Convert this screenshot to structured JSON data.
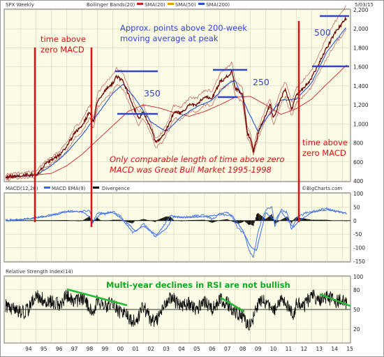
{
  "header": {
    "symbol": "SPX Weekly",
    "indicators": "Bollinger Bands(20)",
    "sma20": "SMA(20)",
    "sma50": "SMA(50)",
    "sma200": "SMA(200)",
    "date": "5/03/15"
  },
  "macd_header": {
    "macd": "MACD(12,26)",
    "ema": "MACD EMA(9)",
    "divergence": "Divergence"
  },
  "rsi_header": {
    "title": "Relative Strength Index(14)"
  },
  "watermark": "©BigCharts.com",
  "annotations": {
    "macd_left_1": "time above",
    "macd_left_2": "zero MACD",
    "peak_1": "Approx. points above 200-week",
    "peak_2": "moving average at peak",
    "pts_350": "350",
    "pts_250": "250",
    "pts_500": "500",
    "comp_1": "Only comparable length of time above zero",
    "comp_2": "MACD was Great Bull Market 1995-1998",
    "macd_right_1": "time above",
    "macd_right_2": "zero MACD",
    "rsi_note": "Multi-year declines in RSI are not bullish"
  },
  "colors": {
    "background": "#ffffff",
    "panel": "#fbfbe6",
    "price": "#6e0000",
    "sma20": "#cc2222",
    "sma50": "#e0a000",
    "sma200": "#2255cc",
    "macd": "#4477dd",
    "signal": "#3366ff",
    "annotation_red": "#dd1111",
    "annotation_blue": "#3344dd",
    "annotation_green": "#22bb33"
  },
  "chart_data": [
    {
      "type": "line",
      "title": "SPX Weekly",
      "ylim": [
        400,
        2200
      ],
      "y_ticks": [
        "2,200",
        "2,000",
        "1,800",
        "1,600",
        "1,400",
        "1,200",
        "1,000",
        "800",
        "600",
        "400"
      ],
      "x_ticks": [
        "94",
        "95",
        "96",
        "97",
        "98",
        "99",
        "00",
        "01",
        "02",
        "03",
        "04",
        "05",
        "06",
        "07",
        "08",
        "09",
        "10",
        "11",
        "12",
        "13",
        "14",
        "15"
      ],
      "series": [
        {
          "name": "SPX",
          "x": [
            1993.0,
            1994.0,
            1995.0,
            1995.5,
            1996.0,
            1996.5,
            1997.0,
            1997.5,
            1998.0,
            1998.5,
            1998.75,
            1999.0,
            1999.5,
            2000.0,
            2000.25,
            2000.7,
            2001.0,
            2001.3,
            2001.7,
            2002.0,
            2002.5,
            2002.8,
            2003.2,
            2003.7,
            2004.0,
            2004.5,
            2005.0,
            2005.5,
            2006.0,
            2006.5,
            2007.0,
            2007.5,
            2007.8,
            2008.0,
            2008.5,
            2008.8,
            2009.0,
            2009.2,
            2009.5,
            2010.0,
            2010.3,
            2010.5,
            2011.0,
            2011.3,
            2011.7,
            2012.0,
            2012.5,
            2013.0,
            2013.5,
            2014.0,
            2014.5,
            2015.0,
            2015.3
          ],
          "y": [
            440,
            460,
            470,
            560,
            620,
            670,
            760,
            900,
            980,
            1130,
            1000,
            1240,
            1350,
            1430,
            1500,
            1450,
            1320,
            1200,
            1050,
            1130,
            950,
            800,
            850,
            1000,
            1130,
            1110,
            1200,
            1200,
            1280,
            1270,
            1440,
            1500,
            1550,
            1380,
            1300,
            900,
            850,
            700,
            900,
            1100,
            1200,
            1050,
            1280,
            1360,
            1150,
            1300,
            1380,
            1480,
            1640,
            1800,
            1950,
            2060,
            2120
          ]
        },
        {
          "name": "SMA(200)",
          "x": [
            1993.0,
            1996.0,
            1997.0,
            1998.0,
            1999.0,
            2000.0,
            2001.0,
            2002.0,
            2003.0,
            2004.0,
            2005.0,
            2006.0,
            2007.0,
            2008.0,
            2009.0,
            2010.0,
            2011.0,
            2012.0,
            2013.0,
            2014.0,
            2015.3
          ],
          "y": [
            430,
            480,
            560,
            680,
            830,
            980,
            1130,
            1200,
            1170,
            1120,
            1080,
            1130,
            1200,
            1280,
            1290,
            1200,
            1100,
            1160,
            1260,
            1420,
            1620
          ]
        },
        {
          "name": "SMA(50)",
          "x": [
            1993.0,
            1995.0,
            1996.0,
            1997.0,
            1998.0,
            1999.0,
            2000.0,
            2000.7,
            2001.5,
            2002.5,
            2003.5,
            2004.5,
            2005.5,
            2006.5,
            2007.5,
            2008.0,
            2008.8,
            2009.5,
            2010.0,
            2011.0,
            2012.0,
            2013.0,
            2014.0,
            2015.3
          ],
          "y": [
            440,
            460,
            560,
            700,
            880,
            1100,
            1320,
            1420,
            1260,
            1020,
            920,
            1080,
            1180,
            1250,
            1420,
            1460,
            1150,
            920,
            1050,
            1250,
            1260,
            1430,
            1760,
            2020
          ]
        }
      ]
    },
    {
      "type": "line",
      "title": "MACD(12,26)",
      "ylim": [
        -150,
        100
      ],
      "y_ticks": [
        "100",
        "50",
        "0",
        "-50",
        "-100",
        "-150"
      ],
      "series": [
        {
          "name": "MACD(12,26)",
          "x": [
            1993.0,
            1994.0,
            1995.0,
            1996.0,
            1997.0,
            1997.8,
            1998.5,
            1998.7,
            1999.0,
            1999.5,
            2000.0,
            2000.5,
            2001.0,
            2001.3,
            2001.7,
            2002.0,
            2002.5,
            2002.8,
            2003.3,
            2003.8,
            2004.5,
            2005.0,
            2006.0,
            2006.5,
            2007.0,
            2007.5,
            2007.8,
            2008.2,
            2008.6,
            2008.9,
            2009.2,
            2009.5,
            2010.0,
            2010.4,
            2010.6,
            2011.0,
            2011.4,
            2011.7,
            2012.0,
            2012.5,
            2013.0,
            2013.5,
            2014.0,
            2014.5,
            2015.0,
            2015.3
          ],
          "y": [
            2,
            3,
            12,
            20,
            35,
            30,
            40,
            -10,
            30,
            25,
            35,
            15,
            -20,
            -45,
            -30,
            -10,
            -40,
            -60,
            -20,
            20,
            10,
            15,
            20,
            5,
            25,
            30,
            15,
            -30,
            -50,
            -110,
            -135,
            -40,
            40,
            50,
            -20,
            40,
            30,
            -35,
            10,
            25,
            35,
            40,
            45,
            35,
            30,
            25
          ]
        },
        {
          "name": "MACD EMA(9)",
          "x": [
            1993.0,
            1994.0,
            1995.0,
            1996.0,
            1997.0,
            1998.0,
            1998.8,
            1999.2,
            2000.0,
            2001.0,
            2001.5,
            2002.0,
            2002.9,
            2003.5,
            2004.0,
            2005.0,
            2006.0,
            2007.0,
            2007.8,
            2008.5,
            2009.0,
            2009.4,
            2010.0,
            2010.6,
            2011.0,
            2011.8,
            2012.2,
            2013.0,
            2014.0,
            2015.3
          ],
          "y": [
            2,
            3,
            10,
            18,
            32,
            34,
            0,
            25,
            30,
            -10,
            -40,
            -20,
            -55,
            -30,
            15,
            12,
            15,
            22,
            20,
            -35,
            -95,
            -110,
            30,
            0,
            35,
            -25,
            0,
            30,
            40,
            28
          ]
        }
      ]
    },
    {
      "type": "line",
      "title": "Relative Strength Index(14)",
      "ylim": [
        0,
        100
      ],
      "y_ticks": [
        "100",
        "80",
        "50",
        "20"
      ],
      "series": [
        {
          "name": "RSI(14)",
          "x": [
            1993.0,
            1994.0,
            1994.5,
            1995.0,
            1995.5,
            1996.0,
            1996.5,
            1997.0,
            1997.5,
            1998.0,
            1998.5,
            1998.8,
            1999.0,
            1999.5,
            2000.0,
            2000.5,
            2001.0,
            2001.3,
            2001.7,
            2002.0,
            2002.5,
            2002.8,
            2003.3,
            2003.8,
            2004.5,
            2005.0,
            2005.5,
            2006.0,
            2006.5,
            2007.0,
            2007.5,
            2008.0,
            2008.5,
            2008.8,
            2009.0,
            2009.3,
            2009.6,
            2010.0,
            2010.5,
            2011.0,
            2011.5,
            2011.8,
            2012.0,
            2012.5,
            2013.0,
            2013.5,
            2014.0,
            2014.5,
            2015.0,
            2015.3
          ],
          "y": [
            55,
            45,
            50,
            72,
            65,
            62,
            58,
            70,
            62,
            67,
            55,
            40,
            65,
            55,
            60,
            45,
            40,
            30,
            40,
            55,
            35,
            30,
            55,
            68,
            55,
            60,
            50,
            62,
            50,
            65,
            60,
            45,
            40,
            28,
            25,
            45,
            65,
            62,
            45,
            65,
            55,
            40,
            60,
            55,
            72,
            65,
            70,
            62,
            65,
            60
          ]
        }
      ]
    }
  ]
}
